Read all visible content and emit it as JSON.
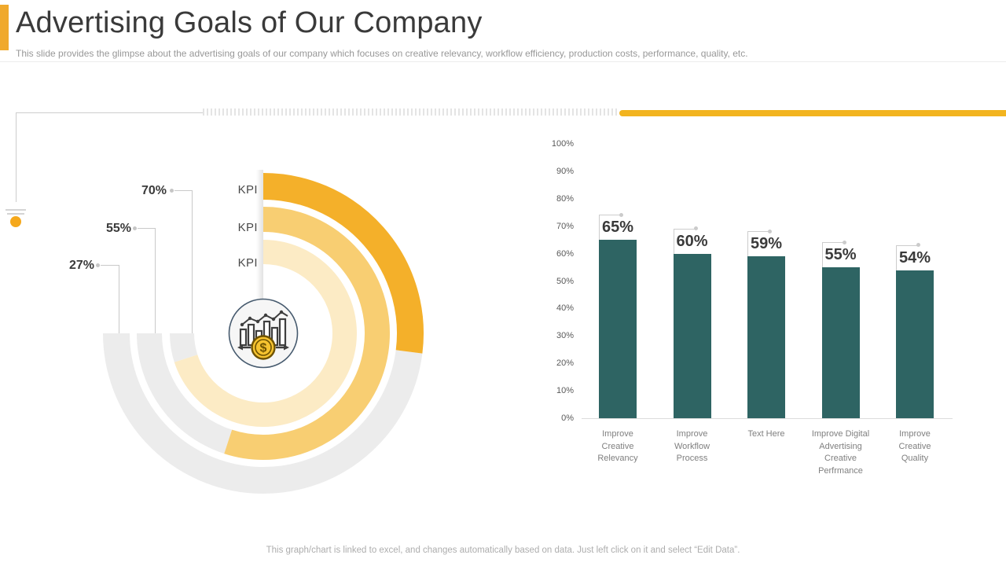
{
  "header": {
    "title": "Advertising Goals of Our Company",
    "subtitle": "This slide provides the glimpse about the advertising goals of our company which focuses on creative relevancy,  workflow efficiency, production costs, performance, quality, etc."
  },
  "colors": {
    "accent_amber": "#F0A92C",
    "deco_bar_yellow": "#F2B41F",
    "deco_dot_orange": "#F5A81C",
    "ring_track_gray": "#ECECEC",
    "bar_teal": "#2E6463"
  },
  "chart_data": [
    {
      "type": "radial-gauge",
      "description": "Three concentric KPI progress rings, start at 12 o'clock sweeping clockwise; gray track ends at 9 o'clock",
      "start_angle_deg": 0,
      "track_end_angle_deg": 270,
      "track_color": "#ECECEC",
      "center_icon": "money-analytics-icon",
      "rings": [
        {
          "label": "KPI",
          "value": 27,
          "value_label": "27%",
          "position": "outer",
          "color": "#F4B02A"
        },
        {
          "label": "KPI",
          "value": 55,
          "value_label": "55%",
          "position": "middle",
          "color": "#F8CE72"
        },
        {
          "label": "KPI",
          "value": 70,
          "value_label": "70%",
          "position": "inner",
          "color": "#FCEBC5"
        }
      ]
    },
    {
      "type": "bar",
      "title": "",
      "xlabel": "",
      "ylabel": "",
      "ylim": [
        0,
        100
      ],
      "grid": false,
      "bar_color": "#2E6463",
      "yticks": [
        "100%",
        "90%",
        "80%",
        "70%",
        "60%",
        "50%",
        "40%",
        "30%",
        "20%",
        "10%",
        "0%"
      ],
      "categories": [
        [
          "Improve",
          "Creative",
          "Relevancy"
        ],
        [
          "Improve",
          "Workflow",
          "Process"
        ],
        [
          "Text Here"
        ],
        [
          "Improve Digital",
          "Advertising",
          "Creative",
          "Perfrmance"
        ],
        [
          "Improve",
          "Creative",
          "Quality"
        ]
      ],
      "values": [
        65,
        60,
        59,
        55,
        54
      ],
      "data_labels": [
        "65%",
        "60%",
        "59%",
        "55%",
        "54%"
      ]
    }
  ],
  "footer": {
    "note": "This graph/chart is linked to excel,  and changes automatically based on data. Just left click on it and select “Edit Data”."
  }
}
